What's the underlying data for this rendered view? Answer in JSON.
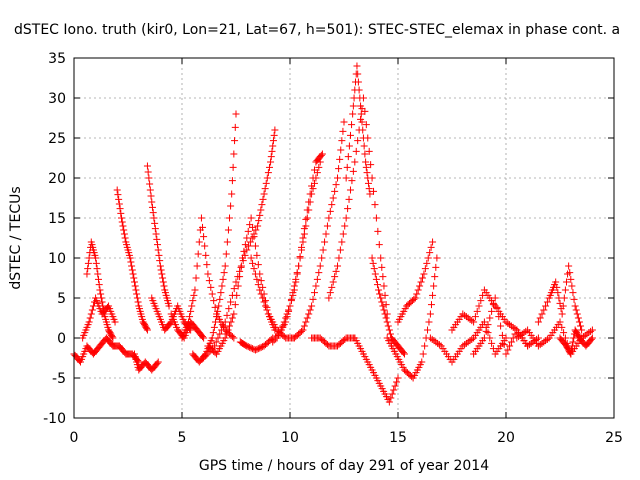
{
  "chart_data": {
    "type": "scatter",
    "title": "dSTEC Iono. truth (kir0, Lon=21, Lat=67, h=501): STEC-STEC_elemax in phase cont. a",
    "xlabel": "GPS time / hours of day 291 of year 2014",
    "ylabel": "dSTEC  / TECUs",
    "xlim": [
      0,
      25
    ],
    "ylim": [
      -10,
      35
    ],
    "xticks": [
      0,
      5,
      10,
      15,
      20,
      25
    ],
    "yticks": [
      -10,
      -5,
      0,
      5,
      10,
      15,
      20,
      25,
      30,
      35
    ],
    "grid": true,
    "marker": "plus",
    "color": "#ff0000",
    "series": [
      {
        "x": [
          0.0,
          0.3,
          0.6,
          0.9,
          1.2,
          1.5,
          1.8,
          2.1,
          2.4,
          2.7,
          3.0
        ],
        "y": [
          -2,
          -3,
          -1,
          -2,
          -1,
          0,
          -1,
          -1,
          -2,
          -2,
          -3
        ]
      },
      {
        "x": [
          0.6,
          0.8,
          1.0,
          1.2,
          1.4,
          1.6,
          1.8
        ],
        "y": [
          8,
          12,
          10,
          6,
          3,
          1,
          0
        ]
      },
      {
        "x": [
          0.4,
          0.7,
          1.0,
          1.3,
          1.6,
          1.9
        ],
        "y": [
          0,
          2,
          5,
          3,
          4,
          2
        ]
      },
      {
        "x": [
          2.0,
          2.2,
          2.4,
          2.6,
          2.8,
          3.0,
          3.2,
          3.4
        ],
        "y": [
          18.5,
          15,
          12,
          10,
          7,
          4,
          2,
          1
        ]
      },
      {
        "x": [
          2.8,
          3.0,
          3.3,
          3.6,
          3.9
        ],
        "y": [
          -2,
          -4,
          -3,
          -4,
          -3
        ]
      },
      {
        "x": [
          3.4,
          3.6,
          3.8,
          4.0,
          4.2,
          4.4
        ],
        "y": [
          21.5,
          17,
          13,
          9,
          6,
          4
        ]
      },
      {
        "x": [
          3.6,
          3.9,
          4.2,
          4.5,
          4.8,
          5.1,
          5.4
        ],
        "y": [
          5,
          3,
          1,
          2,
          4,
          2,
          1
        ]
      },
      {
        "x": [
          4.5,
          4.8,
          5.1,
          5.4,
          5.7,
          6.0
        ],
        "y": [
          3,
          1,
          0,
          2,
          1,
          0
        ]
      },
      {
        "x": [
          5.5,
          5.8,
          6.1,
          6.4,
          6.7,
          7.0,
          7.3,
          7.5
        ],
        "y": [
          -2,
          -3,
          -2,
          0,
          4,
          9,
          18,
          28
        ]
      },
      {
        "x": [
          5.0,
          5.3,
          5.6,
          5.9,
          6.2,
          6.6,
          7.0,
          7.4
        ],
        "y": [
          0,
          2,
          6,
          15,
          8,
          3,
          1,
          0
        ]
      },
      {
        "x": [
          6.2,
          6.6,
          7.0,
          7.4,
          7.8,
          8.2,
          8.6,
          9.0,
          9.3
        ],
        "y": [
          -1,
          -2,
          0,
          3,
          10,
          15,
          8,
          3,
          1
        ]
      },
      {
        "x": [
          6.0,
          6.5,
          7.0,
          7.5,
          8.0,
          8.5,
          8.8,
          9.1,
          9.3
        ],
        "y": [
          -2.5,
          -1,
          2,
          7,
          11,
          14,
          18,
          22,
          26
        ]
      },
      {
        "x": [
          7.7,
          8.0,
          8.4,
          8.8,
          9.2
        ],
        "y": [
          -0.5,
          -1,
          -1.5,
          -1,
          0
        ]
      },
      {
        "x": [
          8.2,
          8.6,
          9.0,
          9.4,
          9.8,
          10.2
        ],
        "y": [
          10,
          6,
          3,
          1,
          0,
          0
        ]
      },
      {
        "x": [
          9.2,
          9.6,
          10.0,
          10.4,
          10.8,
          11.2,
          11.5
        ],
        "y": [
          -0.5,
          1,
          4,
          9,
          16,
          22,
          23
        ]
      },
      {
        "x": [
          9.4,
          9.8,
          10.2,
          10.6,
          11.0,
          11.4
        ],
        "y": [
          0,
          2,
          6,
          12,
          18,
          22
        ]
      },
      {
        "x": [
          10.2,
          10.6,
          11.0,
          11.4,
          11.8,
          12.2,
          12.5
        ],
        "y": [
          0,
          1,
          4,
          9,
          15,
          20,
          27
        ]
      },
      {
        "x": [
          11.0,
          11.4,
          11.8,
          12.2,
          12.6,
          13.0
        ],
        "y": [
          0,
          0,
          -1,
          -1,
          0,
          0
        ]
      },
      {
        "x": [
          11.8,
          12.2,
          12.6,
          13.0,
          13.4,
          13.8,
          14.2,
          14.5
        ],
        "y": [
          5,
          9,
          15,
          22,
          30,
          20,
          10,
          3
        ]
      },
      {
        "x": [
          12.6,
          12.9,
          13.1,
          13.3,
          13.5,
          13.7
        ],
        "y": [
          20,
          28,
          34,
          28,
          22,
          18
        ]
      },
      {
        "x": [
          13.0,
          13.4,
          13.8,
          14.2,
          14.6,
          15.0
        ],
        "y": [
          0,
          -2,
          -4,
          -6,
          -8,
          -5
        ]
      },
      {
        "x": [
          13.8,
          14.1,
          14.4,
          14.7,
          15.0,
          15.3
        ],
        "y": [
          10,
          6,
          3,
          0,
          -1,
          -2
        ]
      },
      {
        "x": [
          14.5,
          14.9,
          15.3,
          15.7,
          16.1,
          16.5,
          16.8
        ],
        "y": [
          0,
          -2,
          -4,
          -5,
          -3,
          3,
          10
        ]
      },
      {
        "x": [
          15.0,
          15.4,
          15.8,
          16.2,
          16.6
        ],
        "y": [
          2,
          4,
          5,
          8,
          12
        ]
      },
      {
        "x": [
          16.5,
          17.0,
          17.5,
          18.0,
          18.5,
          19.0,
          19.5,
          20.0
        ],
        "y": [
          0,
          -1,
          -3,
          -1,
          0,
          2,
          -2,
          0
        ]
      },
      {
        "x": [
          17.5,
          18.0,
          18.5,
          19.0,
          19.5,
          20.0,
          20.5,
          21.0
        ],
        "y": [
          1,
          3,
          2,
          6,
          4,
          2,
          1,
          -1
        ]
      },
      {
        "x": [
          18.5,
          19.0,
          19.5,
          20.0,
          20.5,
          21.0,
          21.5
        ],
        "y": [
          -2,
          0,
          5,
          -2,
          1,
          -1,
          0
        ]
      },
      {
        "x": [
          20.5,
          21.0,
          21.5,
          22.0,
          22.5,
          23.0,
          23.5,
          24.0
        ],
        "y": [
          0,
          1,
          -1,
          0,
          2,
          -2,
          0,
          1
        ]
      },
      {
        "x": [
          21.5,
          22.0,
          22.3,
          22.6,
          22.9,
          23.2,
          23.5
        ],
        "y": [
          2,
          5,
          7,
          3,
          9,
          4,
          1
        ]
      },
      {
        "x": [
          22.5,
          22.8,
          23.0,
          23.2,
          23.4,
          23.7,
          24.0
        ],
        "y": [
          0,
          -1,
          -2,
          1,
          0,
          -1,
          0
        ]
      }
    ]
  }
}
